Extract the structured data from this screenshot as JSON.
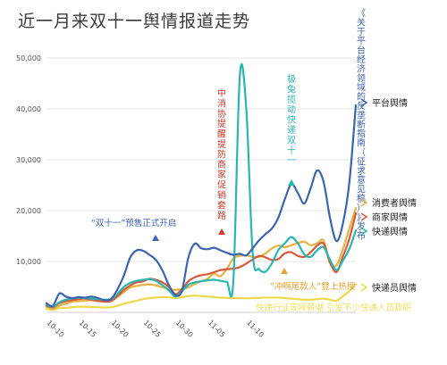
{
  "chart_data": {
    "type": "line",
    "title": "近一月来双十一舆情报道走势",
    "x_ticks": [
      "10-10",
      "10-15",
      "10-20",
      "10-25",
      "10-30",
      "11-05",
      "11-10"
    ],
    "y_ticks": [
      "10,000",
      "20,000",
      "30,000",
      "40,000",
      "50,000"
    ],
    "ylim": [
      0,
      50000
    ],
    "grid": true,
    "series": [
      {
        "name": "平台舆情",
        "color": "#3b64b0",
        "values": [
          1800,
          1300,
          3700,
          3100,
          2800,
          3000,
          2900,
          3100,
          2800,
          2400,
          2600,
          4500,
          7200,
          10800,
          12200,
          12100,
          11300,
          10300,
          8200,
          5300,
          3400,
          4200,
          10700,
          13500,
          12600,
          12400,
          12700,
          12200,
          11700,
          11300,
          11500,
          11200,
          12600,
          14200,
          15400,
          16500,
          18700,
          22300,
          25200,
          23500,
          21400,
          24400,
          27900,
          25600,
          18500,
          14000,
          17500,
          25600,
          40700
        ]
      },
      {
        "name": "消费者舆情",
        "color": "#e8b040",
        "values": [
          1100,
          700,
          1300,
          1700,
          2100,
          2200,
          2300,
          2400,
          2200,
          2100,
          2300,
          3000,
          4000,
          4900,
          5200,
          5400,
          5500,
          5300,
          4900,
          4600,
          4400,
          4600,
          4900,
          5600,
          6100,
          6600,
          7600,
          7100,
          8600,
          10600,
          11100,
          11200,
          10900,
          10900,
          11600,
          12600,
          13100,
          12800,
          13200,
          13600,
          13900,
          13200,
          13600,
          14100,
          9600,
          9300,
          12500,
          16500,
          20500
        ]
      },
      {
        "name": "商家舆情",
        "color": "#d85a3a",
        "values": [
          1300,
          1000,
          1800,
          2200,
          2400,
          2600,
          2700,
          2400,
          2300,
          2100,
          2200,
          3200,
          4400,
          5300,
          5900,
          6100,
          6600,
          6400,
          5900,
          5000,
          3600,
          4500,
          6100,
          6900,
          7300,
          7500,
          7900,
          8300,
          8500,
          8600,
          8900,
          9600,
          10400,
          11100,
          10800,
          10300,
          10500,
          11600,
          11800,
          11100,
          10900,
          11800,
          13100,
          13500,
          9800,
          7900,
          11000,
          14500,
          19500
        ]
      },
      {
        "name": "快递舆情",
        "color": "#28b6b0",
        "values": [
          1500,
          1100,
          2000,
          2500,
          2700,
          2900,
          2800,
          2700,
          2600,
          2500,
          2600,
          3600,
          5000,
          5800,
          6200,
          6400,
          6500,
          6200,
          5300,
          4300,
          3100,
          4100,
          5400,
          5900,
          6100,
          6300,
          6400,
          6200,
          6000,
          6100,
          46600,
          40000,
          11500,
          8500,
          8000,
          9700,
          12300,
          13600,
          14800,
          13600,
          11400,
          10900,
          12200,
          12800,
          10300,
          8300,
          10200,
          12500,
          16100
        ]
      },
      {
        "name": "快递员舆情",
        "color": "#efd94a",
        "values": [
          700,
          500,
          800,
          900,
          1000,
          1100,
          1100,
          1050,
          1000,
          950,
          1000,
          1300,
          1700,
          2000,
          2300,
          2600,
          2800,
          2900,
          3000,
          2950,
          2850,
          3000,
          3200,
          3300,
          3200,
          3100,
          3000,
          2900,
          2850,
          2800,
          2800,
          2750,
          2800,
          2850,
          2900,
          2900,
          2900,
          2800,
          2700,
          2600,
          2500,
          2500,
          2600,
          2700,
          2500,
          2300,
          3200,
          4200,
          5500
        ]
      }
    ],
    "annotations": [
      {
        "text": "“双十一”预售正式开启",
        "color": "#3b64b0"
      },
      {
        "text": "中消协提醒提防商家促销套路",
        "color": "#d03a2a"
      },
      {
        "text": "极兔揽动快递双十一",
        "color": "#28b6b0"
      },
      {
        "text": "《关于平台经济领域的反垄断指南（征求意见稿）》发布",
        "color": "#3b64b0"
      },
      {
        "text": "“冲啊尾款人”登上热搜",
        "color": "#e8a030"
      },
      {
        "text": "快递行业现降薪潮 引发不少快递人员辞职",
        "color": "#f2e060"
      }
    ]
  }
}
